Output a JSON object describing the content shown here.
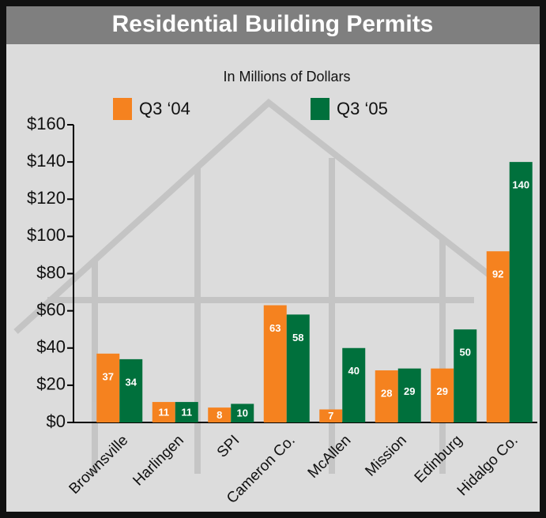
{
  "chart_data": {
    "type": "bar",
    "title": "Residential Building Permits",
    "subtitle": "In Millions of Dollars",
    "categories": [
      "Brownsville",
      "Harlingen",
      "SPI",
      "Cameron Co.",
      "McAllen",
      "Mission",
      "Edinburg",
      "Hidalgo Co."
    ],
    "series": [
      {
        "name": "Q3 ‘04",
        "color": "#f5821f",
        "values": [
          37,
          11,
          8,
          63,
          7,
          28,
          29,
          92
        ]
      },
      {
        "name": "Q3 ‘05",
        "color": "#00703c",
        "values": [
          34,
          11,
          10,
          58,
          40,
          29,
          50,
          140
        ]
      }
    ],
    "ylim": [
      0,
      160
    ],
    "yticks": [
      {
        "value": 0,
        "label": "$0"
      },
      {
        "value": 20,
        "label": "$20"
      },
      {
        "value": 40,
        "label": "$40"
      },
      {
        "value": 60,
        "label": "$60"
      },
      {
        "value": 80,
        "label": "$80"
      },
      {
        "value": 100,
        "label": "$100"
      },
      {
        "value": 120,
        "label": "$120"
      },
      {
        "value": 140,
        "label": "$140"
      },
      {
        "value": 160,
        "label": "$160"
      }
    ],
    "grid": false
  }
}
